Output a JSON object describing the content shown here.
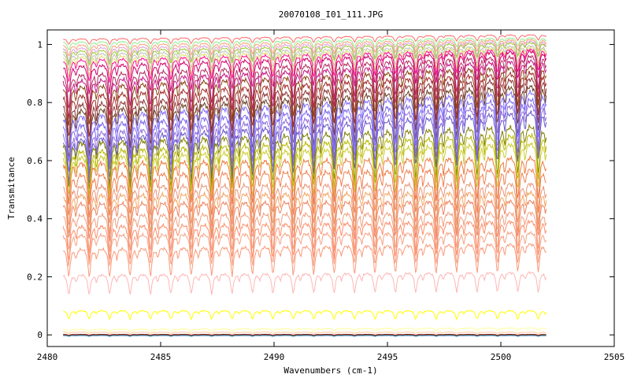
{
  "chart_data": {
    "type": "line",
    "title": "20070108_I01_111.JPG",
    "xlabel": "Wavenumbers (cm-1)",
    "ylabel": "Transmitance",
    "xlim": [
      2480,
      2505
    ],
    "ylim": [
      -0.04,
      1.05
    ],
    "xticks": [
      {
        "value": 2480,
        "label": "2480"
      },
      {
        "value": 2485,
        "label": "2485"
      },
      {
        "value": 2490,
        "label": "2490"
      },
      {
        "value": 2495,
        "label": "2495"
      },
      {
        "value": 2500,
        "label": "2500"
      },
      {
        "value": 2505,
        "label": "2505"
      }
    ],
    "yticks": [
      {
        "value": 0,
        "label": "0"
      },
      {
        "value": 0.2,
        "label": "0.2"
      },
      {
        "value": 0.4,
        "label": "0.4"
      },
      {
        "value": 0.6,
        "label": "0.6"
      },
      {
        "value": 0.8,
        "label": "0.8"
      },
      {
        "value": 1,
        "label": "1"
      }
    ],
    "x_range_data": [
      2480.7,
      2502.0
    ],
    "line_spacing_cm1": 0.9,
    "grid": false,
    "legend": "none",
    "series": [
      {
        "color": "#ff6a6a",
        "start": 1.02,
        "end": 1.035,
        "depth": 0.02
      },
      {
        "color": "#90ee90",
        "start": 1.01,
        "end": 1.025,
        "depth": 0.03
      },
      {
        "color": "#ffa07a",
        "start": 1.0,
        "end": 1.02,
        "depth": 0.04
      },
      {
        "color": "#dda0dd",
        "start": 0.99,
        "end": 1.015,
        "depth": 0.05
      },
      {
        "color": "#9acd32",
        "start": 0.98,
        "end": 1.01,
        "depth": 0.05
      },
      {
        "color": "#c0c0c0",
        "start": 0.97,
        "end": 1.0,
        "depth": 0.06
      },
      {
        "color": "#e0e070",
        "start": 0.96,
        "end": 0.995,
        "depth": 0.07
      },
      {
        "color": "#ff1493",
        "start": 0.95,
        "end": 0.99,
        "depth": 0.08
      },
      {
        "color": "#cc0066",
        "start": 0.93,
        "end": 0.985,
        "depth": 0.1
      },
      {
        "color": "#b03060",
        "start": 0.9,
        "end": 0.97,
        "depth": 0.12
      },
      {
        "color": "#c71585",
        "start": 0.88,
        "end": 0.955,
        "depth": 0.13
      },
      {
        "color": "#8b4513",
        "start": 0.86,
        "end": 0.935,
        "depth": 0.14
      },
      {
        "color": "#a52a2a",
        "start": 0.83,
        "end": 0.915,
        "depth": 0.15
      },
      {
        "color": "#8b3a3a",
        "start": 0.8,
        "end": 0.895,
        "depth": 0.16
      },
      {
        "color": "#6b4226",
        "start": 0.78,
        "end": 0.87,
        "depth": 0.17
      },
      {
        "color": "#8470ff",
        "start": 0.76,
        "end": 0.85,
        "depth": 0.17
      },
      {
        "color": "#7b68ee",
        "start": 0.73,
        "end": 0.825,
        "depth": 0.17
      },
      {
        "color": "#9370db",
        "start": 0.7,
        "end": 0.805,
        "depth": 0.17
      },
      {
        "color": "#6a5acd",
        "start": 0.68,
        "end": 0.78,
        "depth": 0.17
      },
      {
        "color": "#808000",
        "start": 0.67,
        "end": 0.73,
        "depth": 0.17
      },
      {
        "color": "#b8b800",
        "start": 0.64,
        "end": 0.7,
        "depth": 0.16
      },
      {
        "color": "#cccc33",
        "start": 0.62,
        "end": 0.67,
        "depth": 0.16
      },
      {
        "color": "#ee7942",
        "start": 0.6,
        "end": 0.62,
        "depth": 0.15
      },
      {
        "color": "#f08050",
        "start": 0.56,
        "end": 0.58,
        "depth": 0.15
      },
      {
        "color": "#e9967a",
        "start": 0.52,
        "end": 0.53,
        "depth": 0.14
      },
      {
        "color": "#f4a460",
        "start": 0.49,
        "end": 0.5,
        "depth": 0.14
      },
      {
        "color": "#ee8262",
        "start": 0.46,
        "end": 0.47,
        "depth": 0.13
      },
      {
        "color": "#f0a080",
        "start": 0.42,
        "end": 0.43,
        "depth": 0.13
      },
      {
        "color": "#ff8c69",
        "start": 0.38,
        "end": 0.4,
        "depth": 0.12
      },
      {
        "color": "#f5a385",
        "start": 0.35,
        "end": 0.36,
        "depth": 0.11
      },
      {
        "color": "#fa9a7a",
        "start": 0.3,
        "end": 0.32,
        "depth": 0.1
      },
      {
        "color": "#ffb6b6",
        "start": 0.21,
        "end": 0.22,
        "depth": 0.07
      },
      {
        "color": "#ffff00",
        "start": 0.085,
        "end": 0.085,
        "depth": 0.03
      },
      {
        "color": "#ffff99",
        "start": 0.02,
        "end": 0.025,
        "depth": 0.01
      },
      {
        "color": "#ffcc99",
        "start": 0.01,
        "end": 0.01,
        "depth": 0.005
      },
      {
        "color": "#2e8b57",
        "start": 0.0,
        "end": 0.0,
        "depth": 0.004
      },
      {
        "color": "#4682b4",
        "start": -0.002,
        "end": -0.002,
        "depth": 0.003
      },
      {
        "color": "#8b0000",
        "start": 0.002,
        "end": 0.002,
        "depth": 0.003
      }
    ]
  }
}
